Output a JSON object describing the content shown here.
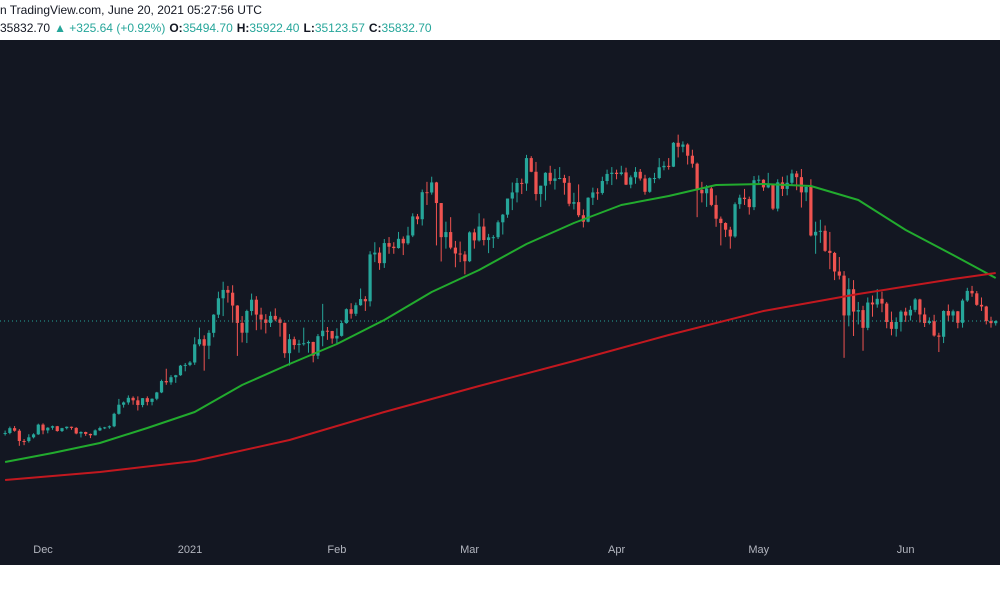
{
  "chart_data": {
    "type": "candlestick",
    "header": {
      "source": "n TradingView.com, June 20, 2021 05:27:56 UTC",
      "price_label": "35832.70",
      "change_label": "▲ +325.64 (+0.92%)",
      "prefixes": {
        "open": "O:",
        "high": "H:",
        "low": "L:",
        "close": "C:"
      }
    },
    "last_labels": {
      "open": "35494.70",
      "high": "35922.40",
      "low": "35123.57",
      "close": "35832.70"
    },
    "colors": {
      "up": "#26a69a",
      "down": "#ef5350",
      "background": "#131722"
    },
    "xlim": [
      -1.08,
      209.9
    ],
    "ylim": [
      -2158,
      79585
    ],
    "xticks": [
      {
        "value": 8,
        "label": "Dec"
      },
      {
        "value": 39,
        "label": "2021"
      },
      {
        "value": 70,
        "label": "Feb"
      },
      {
        "value": 98,
        "label": "Mar"
      },
      {
        "value": 129,
        "label": "Apr"
      },
      {
        "value": 159,
        "label": "May"
      },
      {
        "value": 190,
        "label": "Jun"
      }
    ],
    "open": [
      18370,
      18400,
      19150,
      18750,
      17150,
      17140,
      17720,
      18180,
      19700,
      18800,
      19220,
      19450,
      18700,
      19150,
      19370,
      19190,
      18320,
      18550,
      18250,
      18040,
      18800,
      19170,
      19270,
      19440,
      21380,
      22800,
      23150,
      23870,
      23480,
      22750,
      23820,
      23240,
      23730,
      24710,
      26490,
      26280,
      27080,
      27390,
      28880,
      29000,
      29370,
      32200,
      33000,
      31990,
      33990,
      36820,
      39370,
      40670,
      40240,
      38240,
      35540,
      34010,
      37390,
      39150,
      36830,
      36070,
      35540,
      36630,
      36070,
      35550,
      30820,
      33000,
      32090,
      32290,
      32370,
      32570,
      30430,
      33470,
      34320,
      34270,
      33110,
      33520,
      35510,
      37670,
      36960,
      38290,
      39250,
      38900,
      46200,
      46480,
      44840,
      47970,
      47400,
      47190,
      48630,
      47930,
      49150,
      52120,
      51680,
      55890,
      55840,
      57410,
      54200,
      48890,
      49680,
      47260,
      46340,
      46190,
      45140,
      49630,
      48380,
      50540,
      48440,
      48860,
      48880,
      51200,
      52390,
      54900,
      55850,
      57330,
      57250,
      61200,
      59070,
      55600,
      56900,
      58910,
      57650,
      58030,
      58100,
      57350,
      54090,
      54340,
      52300,
      51290,
      55030,
      55850,
      55770,
      57630,
      58730,
      58920,
      58720,
      58970,
      57060,
      58200,
      59060,
      58020,
      55950,
      58080,
      58090,
      59770,
      59990,
      59860,
      63580,
      62960,
      63310,
      61570,
      60330,
      56250,
      55720,
      56470,
      53910,
      51760,
      51090,
      50050,
      49000,
      54020,
      55030,
      54820,
      53560,
      57750,
      57830,
      56630,
      57200,
      53330,
      57420,
      56400,
      57360,
      58800,
      58230,
      55860,
      56700,
      49150,
      49720,
      49880,
      46760,
      46430,
      43540,
      42900,
      36700,
      40780,
      37300,
      37530,
      34770,
      38710,
      38410,
      39290,
      38550,
      35680,
      34610,
      35680,
      37290,
      36690,
      37570,
      39190,
      36850,
      35520,
      35800,
      33570,
      33380,
      37390,
      36690,
      37340,
      35550,
      39020,
      40520,
      40140,
      38350,
      38090,
      35820,
      35494.7
    ],
    "high": [
      18770,
      19400,
      19480,
      19000,
      17450,
      18200,
      18350,
      19850,
      19900,
      19300,
      19550,
      19500,
      19200,
      19420,
      19400,
      19300,
      18650,
      18600,
      18300,
      18950,
      19400,
      19350,
      19570,
      21550,
      23700,
      23300,
      24250,
      24100,
      24100,
      23840,
      24100,
      23790,
      24800,
      26700,
      28400,
      27400,
      27450,
      28990,
      29300,
      29600,
      33300,
      34800,
      33600,
      34400,
      36900,
      40400,
      41950,
      41300,
      41400,
      38300,
      36600,
      37600,
      40100,
      39700,
      37900,
      36900,
      37300,
      37800,
      36400,
      35600,
      33800,
      33400,
      32900,
      34800,
      32800,
      32600,
      33800,
      38500,
      34900,
      34300,
      34700,
      35900,
      37800,
      38600,
      38700,
      40900,
      39700,
      46700,
      48100,
      47300,
      48600,
      48900,
      48100,
      49700,
      49000,
      50500,
      52600,
      52500,
      56300,
      57500,
      58300,
      57500,
      54200,
      51300,
      52000,
      48300,
      48200,
      46700,
      49800,
      50200,
      52600,
      51800,
      49400,
      49200,
      51500,
      52500,
      54900,
      57400,
      58100,
      58000,
      61700,
      61500,
      60600,
      56900,
      59000,
      60000,
      59500,
      59800,
      58600,
      58400,
      55800,
      57100,
      53200,
      55100,
      56600,
      56500,
      58300,
      59400,
      59800,
      59400,
      60000,
      59700,
      58500,
      59800,
      59500,
      58600,
      58200,
      58900,
      61200,
      60700,
      61200,
      63700,
      64850,
      63800,
      63500,
      62500,
      60500,
      57500,
      57000,
      56800,
      55400,
      52100,
      51200,
      50500,
      54300,
      55500,
      56400,
      55200,
      58400,
      58500,
      57900,
      58900,
      57200,
      57900,
      58300,
      58500,
      59400,
      59200,
      59500,
      56900,
      57900,
      51300,
      51600,
      50700,
      49700,
      46600,
      45800,
      43600,
      42500,
      42200,
      38800,
      38200,
      39500,
      39800,
      40800,
      40400,
      38800,
      37300,
      36400,
      37500,
      37900,
      38200,
      39400,
      39300,
      37900,
      36400,
      36800,
      34000,
      37500,
      38400,
      37600,
      37400,
      39300,
      41000,
      41300,
      40500,
      39500,
      38200,
      36500,
      35922.4
    ],
    "low": [
      18000,
      18200,
      18600,
      16400,
      16500,
      16900,
      17550,
      18100,
      18200,
      18350,
      18900,
      18600,
      18550,
      18950,
      18900,
      18200,
      17700,
      17950,
      17600,
      18000,
      18700,
      19000,
      19050,
      19300,
      21250,
      22350,
      22800,
      22800,
      21900,
      22400,
      22700,
      22700,
      23500,
      24600,
      25900,
      25900,
      26200,
      27300,
      28000,
      28800,
      29000,
      31900,
      28100,
      29900,
      33300,
      36300,
      36600,
      38700,
      35600,
      30400,
      32500,
      32400,
      36700,
      34400,
      34500,
      33900,
      34900,
      35800,
      33400,
      30100,
      28900,
      31400,
      30900,
      32000,
      30900,
      29400,
      29900,
      31900,
      32900,
      32300,
      32300,
      33400,
      35400,
      36200,
      36600,
      38200,
      37400,
      38100,
      45000,
      43800,
      44100,
      46300,
      46300,
      47100,
      46100,
      47700,
      48900,
      50900,
      50700,
      53900,
      55500,
      47600,
      45100,
      47100,
      47000,
      44200,
      45000,
      43100,
      45000,
      47100,
      48200,
      47600,
      46400,
      47200,
      48600,
      49300,
      51900,
      53100,
      54300,
      55600,
      56100,
      59000,
      54600,
      53600,
      54600,
      57100,
      56300,
      57900,
      55500,
      53700,
      53200,
      52000,
      50400,
      51200,
      53900,
      54700,
      55500,
      57100,
      57000,
      57900,
      58500,
      57000,
      56500,
      57200,
      57700,
      55500,
      55800,
      57300,
      57900,
      59300,
      59400,
      59800,
      61300,
      62100,
      60200,
      59700,
      52000,
      54300,
      53600,
      53700,
      50500,
      47600,
      48900,
      47100,
      48800,
      53300,
      53900,
      52400,
      53100,
      57100,
      56100,
      56500,
      53100,
      52900,
      55300,
      55400,
      56900,
      56200,
      53500,
      54500,
      49000,
      46300,
      48000,
      46600,
      43900,
      42200,
      42300,
      30100,
      35000,
      33500,
      35300,
      31200,
      34400,
      36500,
      37900,
      37200,
      34700,
      33600,
      33400,
      34200,
      35700,
      35900,
      37200,
      35600,
      34900,
      35300,
      33400,
      31000,
      32400,
      35800,
      35700,
      34700,
      34800,
      38800,
      39600,
      38200,
      37400,
      35300,
      34800,
      35123.57
    ],
    "close": [
      18400,
      19150,
      18750,
      17150,
      17140,
      17720,
      18180,
      19700,
      18800,
      19220,
      19450,
      18700,
      19150,
      19370,
      19190,
      18320,
      18550,
      18250,
      18040,
      18800,
      19170,
      19270,
      19440,
      21380,
      22800,
      23150,
      23870,
      23480,
      22750,
      23820,
      23240,
      23730,
      24710,
      26490,
      26280,
      27080,
      27390,
      28880,
      29000,
      29370,
      32200,
      33000,
      31990,
      33990,
      36820,
      39370,
      40670,
      40240,
      38240,
      35540,
      34010,
      37390,
      39150,
      36830,
      36070,
      35540,
      36630,
      36070,
      35550,
      30820,
      33000,
      32090,
      32290,
      32370,
      32570,
      30430,
      33470,
      34320,
      34270,
      33110,
      33520,
      35510,
      37670,
      36960,
      38290,
      39250,
      38900,
      46200,
      46480,
      44840,
      47970,
      47400,
      47190,
      48630,
      47930,
      49150,
      52120,
      51680,
      55890,
      55840,
      57410,
      54200,
      48890,
      49680,
      47260,
      46340,
      46190,
      45140,
      49630,
      48380,
      50540,
      48440,
      48860,
      48880,
      51200,
      52390,
      54900,
      55850,
      57330,
      57250,
      61200,
      59070,
      55600,
      56900,
      58910,
      57650,
      58030,
      58100,
      57350,
      54090,
      54340,
      52300,
      51290,
      55030,
      55850,
      55770,
      57630,
      58730,
      58920,
      58720,
      58970,
      57060,
      58200,
      59060,
      58020,
      55950,
      58080,
      58090,
      59770,
      59990,
      59860,
      63580,
      62960,
      63310,
      61570,
      60330,
      56250,
      55720,
      56470,
      53910,
      51760,
      51090,
      50050,
      49000,
      54020,
      55030,
      54820,
      53560,
      57750,
      57830,
      56630,
      57200,
      53330,
      57420,
      56400,
      57360,
      58800,
      58230,
      55860,
      56700,
      49150,
      49720,
      49880,
      46760,
      46430,
      43540,
      42900,
      36700,
      40780,
      37300,
      37530,
      34770,
      38710,
      38410,
      39290,
      38550,
      35680,
      34610,
      35680,
      37290,
      36690,
      37570,
      39190,
      36850,
      35520,
      35800,
      33570,
      33380,
      37390,
      36690,
      37340,
      35550,
      39020,
      40520,
      40140,
      38350,
      38090,
      35820,
      35500,
      35832.7
    ],
    "lines": [
      {
        "color": "#22ab2e",
        "x": [
          0,
          10,
          20,
          30,
          40,
          50,
          60,
          70,
          80,
          90,
          100,
          110,
          120,
          130,
          140,
          150,
          160,
          170,
          180,
          190,
          200,
          209
        ],
        "values": [
          13880,
          15280,
          16840,
          19170,
          21660,
          25870,
          29140,
          32250,
          35990,
          40350,
          43770,
          47820,
          51090,
          53890,
          55300,
          57010,
          57160,
          56850,
          54670,
          50000,
          46110,
          42530
        ]
      },
      {
        "color": "#c2181f",
        "x": [
          0,
          20,
          40,
          60,
          80,
          100,
          120,
          140,
          160,
          180,
          200,
          209
        ],
        "values": [
          11080,
          12320,
          14030,
          17300,
          21660,
          25710,
          29600,
          33650,
          37390,
          40040,
          42370,
          43310
        ]
      }
    ]
  }
}
